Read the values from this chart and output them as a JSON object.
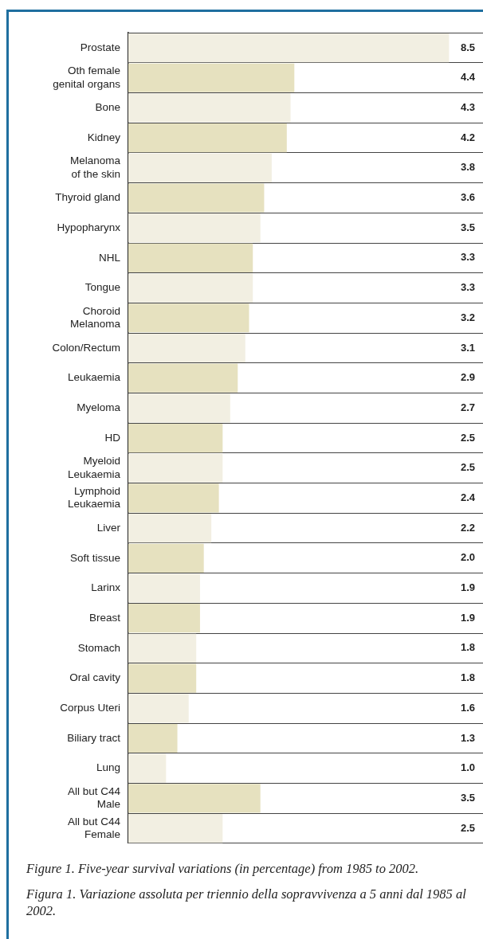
{
  "chart_data": {
    "type": "bar",
    "orientation": "horizontal",
    "categories": [
      "Prostate",
      "Oth female\ngenital organs",
      "Bone",
      "Kidney",
      "Melanoma\nof the skin",
      "Thyroid gland",
      "Hypopharynx",
      "NHL",
      "Tongue",
      "Choroid\nMelanoma",
      "Colon/Rectum",
      "Leukaemia",
      "Myeloma",
      "HD",
      "Myeloid\nLeukaemia",
      "Lymphoid\nLeukaemia",
      "Liver",
      "Soft tissue",
      "Larinx",
      "Breast",
      "Stomach",
      "Oral cavity",
      "Corpus Uteri",
      "Biliary tract",
      "Lung",
      "All but C44\nMale",
      "All but C44\nFemale"
    ],
    "values": [
      8.5,
      4.4,
      4.3,
      4.2,
      3.8,
      3.6,
      3.5,
      3.3,
      3.3,
      3.2,
      3.1,
      2.9,
      2.7,
      2.5,
      2.5,
      2.4,
      2.2,
      2.0,
      1.9,
      1.9,
      1.8,
      1.8,
      1.6,
      1.3,
      1.0,
      3.5,
      2.5
    ],
    "value_labels": [
      "8.5",
      "4.4",
      "4.3",
      "4.2",
      "3.8",
      "3.6",
      "3.5",
      "3.3",
      "3.3",
      "3.2",
      "3.1",
      "2.9",
      "2.7",
      "2.5",
      "2.5",
      "2.4",
      "2.2",
      "2.0",
      "1.9",
      "1.9",
      "1.8",
      "1.8",
      "1.6",
      "1.3",
      "1.0",
      "3.5",
      "2.5"
    ],
    "colors": [
      "#f2efe2",
      "#e6e1bf",
      "#f2efe2",
      "#e6e1bf",
      "#f2efe2",
      "#e6e1bf",
      "#f2efe2",
      "#e6e1bf",
      "#f2efe2",
      "#e6e1bf",
      "#f2efe2",
      "#e6e1bf",
      "#f2efe2",
      "#e6e1bf",
      "#f2efe2",
      "#e6e1bf",
      "#f2efe2",
      "#e6e1bf",
      "#f2efe2",
      "#e6e1bf",
      "#f2efe2",
      "#e6e1bf",
      "#f2efe2",
      "#e6e1bf",
      "#f2efe2",
      "#e6e1bf",
      "#f2efe2"
    ],
    "xlim": [
      0,
      9.4
    ],
    "grid": "y",
    "legend": false,
    "tick_labels": "y",
    "annotations": [
      "Figure 1. Five-year survival variations (in percentage) from 1985 to 2002.",
      "Figura 1. Variazione assoluta per triennio della sopravvivenza a 5 anni dal 1985 al 2002."
    ]
  }
}
